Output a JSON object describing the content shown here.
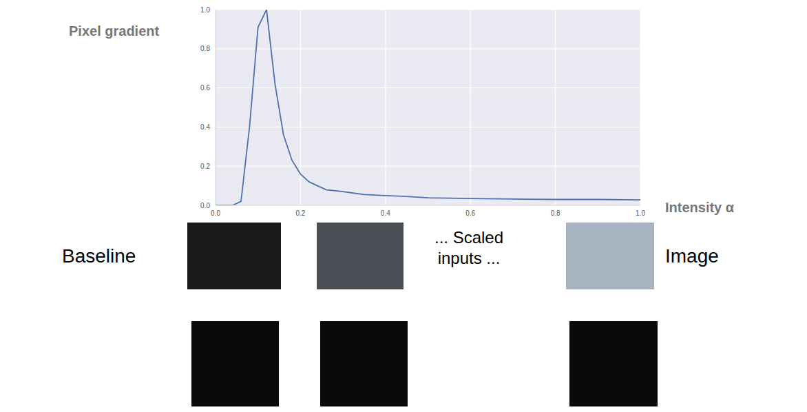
{
  "chart_data": {
    "type": "line",
    "x_label": "Intensity α",
    "y_label": "Pixel gradient",
    "x": [
      0,
      0.02,
      0.04,
      0.06,
      0.08,
      0.1,
      0.12,
      0.14,
      0.16,
      0.18,
      0.2,
      0.22,
      0.24,
      0.26,
      0.3,
      0.35,
      0.4,
      0.45,
      0.5,
      0.6,
      0.7,
      0.8,
      0.9,
      1.0
    ],
    "values": [
      0,
      0,
      0,
      0.02,
      0.4,
      0.91,
      1.0,
      0.62,
      0.36,
      0.23,
      0.16,
      0.12,
      0.1,
      0.08,
      0.07,
      0.055,
      0.05,
      0.045,
      0.038,
      0.035,
      0.032,
      0.03,
      0.03,
      0.028
    ],
    "color": "#4c72b0",
    "xlim": [
      0,
      1
    ],
    "ylim": [
      0,
      1
    ],
    "xticks": [
      {
        "value": 0,
        "label": "0.0"
      },
      0.2,
      0.4,
      0.6,
      0.8,
      {
        "value": 1,
        "label": "1.0"
      }
    ],
    "yticks": [
      {
        "value": 0,
        "label": "0.0"
      },
      0.2,
      0.4,
      0.6,
      0.8,
      {
        "value": 1,
        "label": "1.0"
      }
    ],
    "grid": true,
    "annotations": [
      "Baseline",
      "... Scaled inputs ...",
      "Image"
    ]
  }
}
